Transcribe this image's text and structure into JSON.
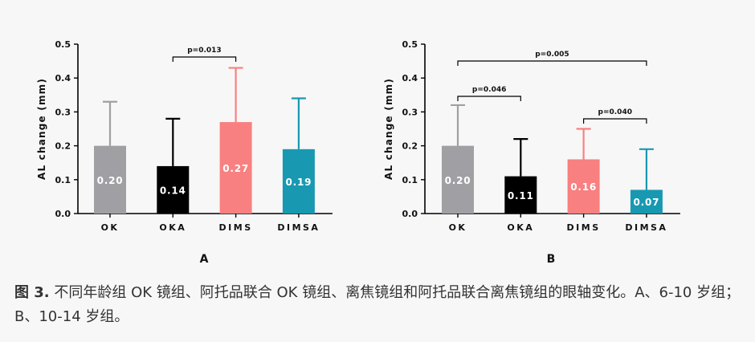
{
  "chart_data": [
    {
      "type": "bar",
      "panel_label": "A",
      "ylabel": "AL change (mm)",
      "ylim": [
        0,
        0.5
      ],
      "yticks": [
        "0.0",
        "0.1",
        "0.2",
        "0.3",
        "0.4",
        "0.5"
      ],
      "categories": [
        "OK",
        "OKA",
        "DIMS",
        "DIMSA"
      ],
      "values": [
        0.2,
        0.14,
        0.27,
        0.19
      ],
      "value_labels": [
        "0.20",
        "0.14",
        "0.27",
        "0.19"
      ],
      "error_upper": [
        0.33,
        0.28,
        0.43,
        0.34
      ],
      "colors": [
        "#a0a0a4",
        "#000000",
        "#f88080",
        "#1899b1"
      ],
      "comparisons": [
        {
          "from": 1,
          "to": 2,
          "label": "p=0.013"
        }
      ]
    },
    {
      "type": "bar",
      "panel_label": "B",
      "ylabel": "AL change (mm)",
      "ylim": [
        0,
        0.5
      ],
      "yticks": [
        "0.0",
        "0.1",
        "0.2",
        "0.3",
        "0.4",
        "0.5"
      ],
      "categories": [
        "OK",
        "OKA",
        "DIMS",
        "DIMSA"
      ],
      "values": [
        0.2,
        0.11,
        0.16,
        0.07
      ],
      "value_labels": [
        "0.20",
        "0.11",
        "0.16",
        "0.07"
      ],
      "error_upper": [
        0.32,
        0.22,
        0.25,
        0.19
      ],
      "colors": [
        "#a0a0a4",
        "#000000",
        "#f88080",
        "#1899b1"
      ],
      "comparisons": [
        {
          "from": 0,
          "to": 3,
          "label": "p=0.005"
        },
        {
          "from": 0,
          "to": 1,
          "label": "p=0.046"
        },
        {
          "from": 2,
          "to": 3,
          "label": "p=0.040"
        }
      ]
    }
  ],
  "caption": {
    "lead": "图 3.",
    "text": " 不同年龄组 OK 镜组、阿托品联合 OK 镜组、离焦镜组和阿托品联合离焦镜组的眼轴变化。A、6-10 岁组；B、10-14 岁组。"
  }
}
